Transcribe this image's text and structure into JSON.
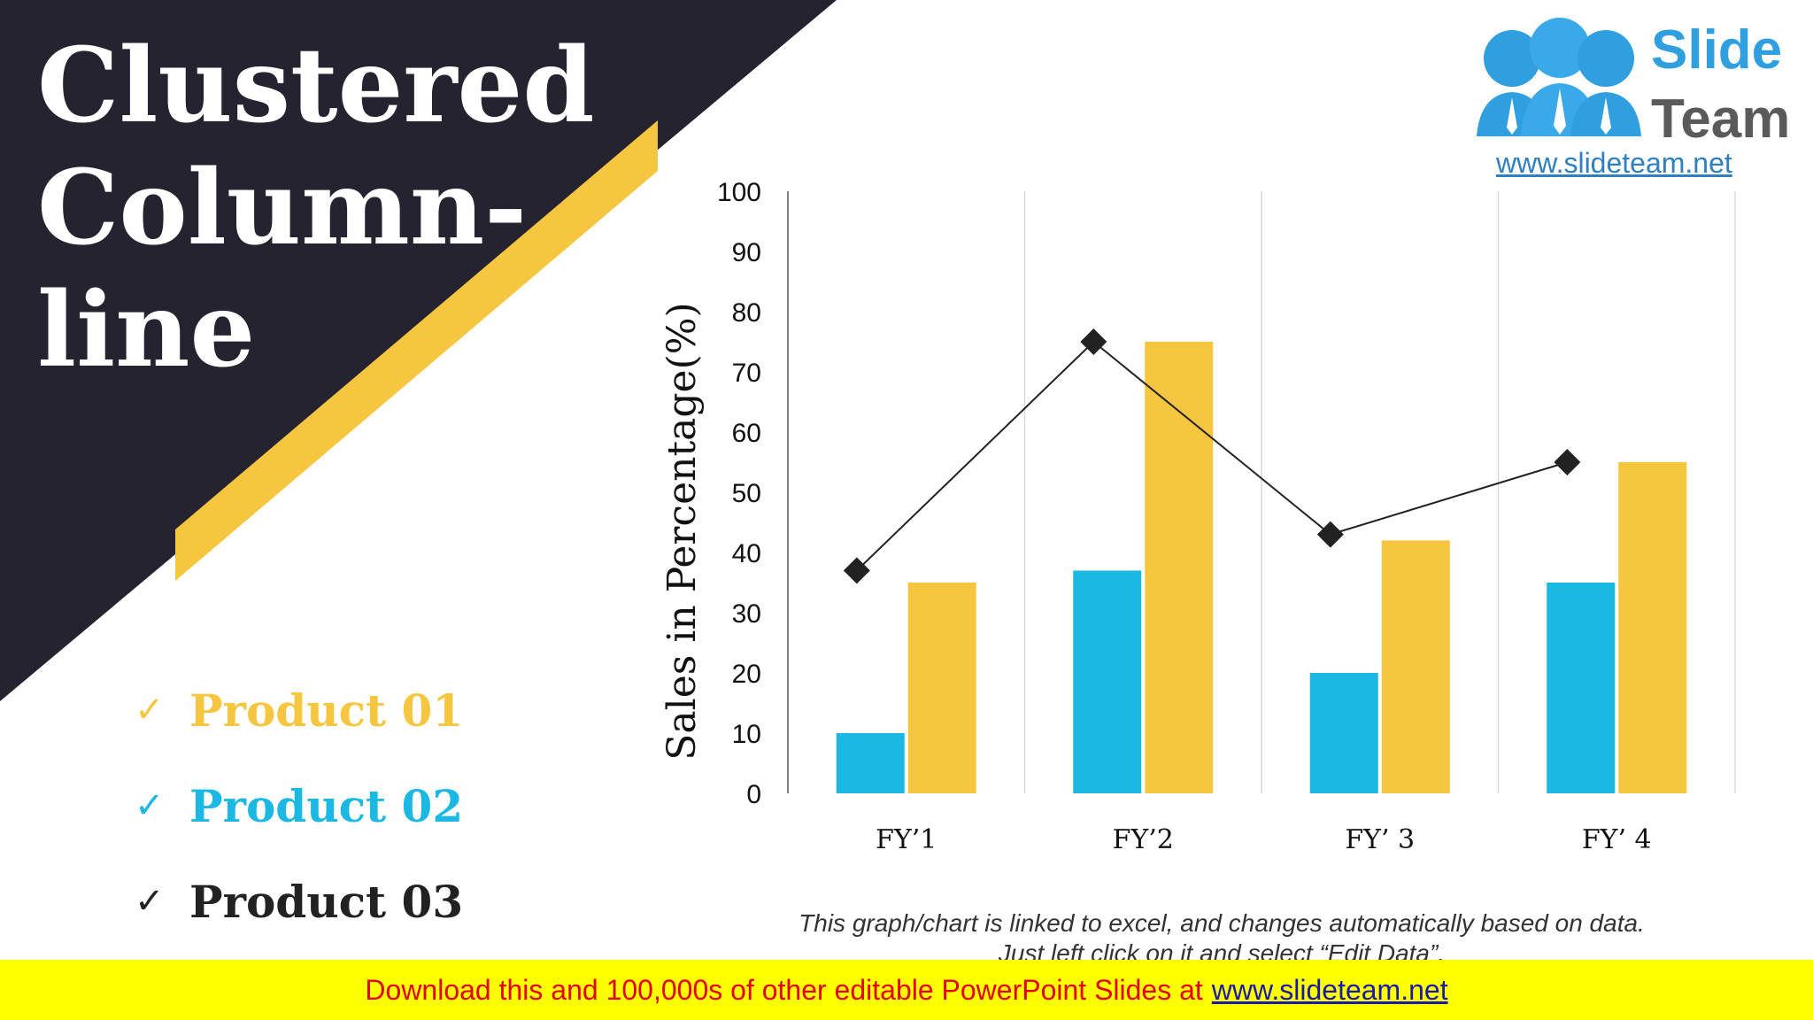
{
  "colors": {
    "dark": "#24232f",
    "accent_yellow": "#f7c640",
    "product01": "#f7c640",
    "product02": "#1ab8e2",
    "product03": "#222222",
    "logo_blue": "#2f9fe0",
    "logo_gray": "#5a5a5a",
    "banner_bg": "#ffff00",
    "banner_text": "#e30000"
  },
  "slide": {
    "title_lines": [
      "Clustered",
      "Column-",
      "line"
    ]
  },
  "legend": {
    "check": "✓",
    "items": [
      "Product 01",
      "Product 02",
      "Product 03"
    ]
  },
  "logo": {
    "word1": "Slide",
    "word2": "Team",
    "url": "www.slideteam.net"
  },
  "note": {
    "line1": "This graph/chart is linked to excel, and changes automatically based on data.",
    "line2": "Just left click on it and select “Edit Data”."
  },
  "banner": {
    "text": "Download this and 100,000s of other editable PowerPoint Slides at",
    "link": "www.slideteam.net"
  },
  "chart_data": {
    "type": "bar",
    "categories": [
      "FY’1",
      "FY’2",
      "FY’ 3",
      "FY’ 4"
    ],
    "ylabel": "Sales in Percentage(%)",
    "xlabel": "",
    "ylim": [
      0,
      100
    ],
    "yticks": [
      0,
      10,
      20,
      30,
      40,
      50,
      60,
      70,
      80,
      90,
      100
    ],
    "grid": "vertical category dividers",
    "series": [
      {
        "name": "Product 01",
        "type": "bar",
        "color": "#f7c640",
        "values": [
          35,
          75,
          42,
          55
        ]
      },
      {
        "name": "Product 02",
        "type": "bar",
        "color": "#1ab8e2",
        "values": [
          10,
          37,
          20,
          35
        ]
      },
      {
        "name": "Product 03",
        "type": "line",
        "color": "#222222",
        "values": [
          37,
          75,
          43,
          55
        ]
      }
    ]
  }
}
